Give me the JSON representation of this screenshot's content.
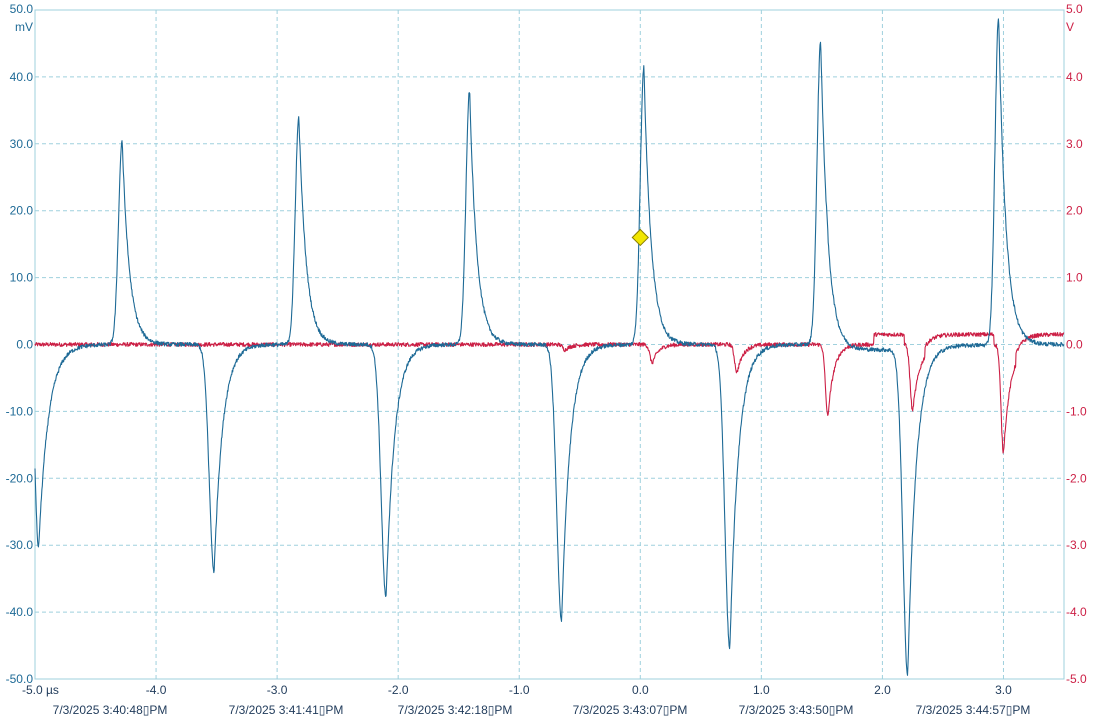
{
  "chart_data": {
    "type": "line",
    "title": "",
    "x_unit": "µs",
    "xlim": [
      -5.0,
      3.5
    ],
    "x_ticks": [
      {
        "value": -5.0,
        "label": "-5.0 µs"
      },
      {
        "value": -4.0,
        "label": "-4.0"
      },
      {
        "value": -3.0,
        "label": "-3.0"
      },
      {
        "value": -2.0,
        "label": "-2.0"
      },
      {
        "value": -1.0,
        "label": "-1.0"
      },
      {
        "value": 0.0,
        "label": "0.0"
      },
      {
        "value": 1.0,
        "label": "1.0"
      },
      {
        "value": 2.0,
        "label": "2.0"
      },
      {
        "value": 3.0,
        "label": "3.0"
      }
    ],
    "left_axis": {
      "unit": "mV",
      "color": "#1e6a96",
      "ylim": [
        -50,
        50
      ],
      "ticks": [
        {
          "value": 50,
          "label": "50.0"
        },
        {
          "value": 40,
          "label": "40.0"
        },
        {
          "value": 30,
          "label": "30.0"
        },
        {
          "value": 20,
          "label": "20.0"
        },
        {
          "value": 10,
          "label": "10.0"
        },
        {
          "value": 0,
          "label": "0.0"
        },
        {
          "value": -10,
          "label": "-10.0"
        },
        {
          "value": -20,
          "label": "-20.0"
        },
        {
          "value": -30,
          "label": "-30.0"
        },
        {
          "value": -40,
          "label": "-40.0"
        },
        {
          "value": -50,
          "label": "-50.0"
        }
      ]
    },
    "right_axis": {
      "unit": "V",
      "color": "#cc1f45",
      "ylim": [
        -5,
        5
      ],
      "ticks": [
        {
          "value": 5,
          "label": "5.0"
        },
        {
          "value": 4,
          "label": "4.0"
        },
        {
          "value": 3,
          "label": "3.0"
        },
        {
          "value": 2,
          "label": "2.0"
        },
        {
          "value": 1,
          "label": "1.0"
        },
        {
          "value": 0,
          "label": "0.0"
        },
        {
          "value": -1,
          "label": "-1.0"
        },
        {
          "value": -2,
          "label": "-2.0"
        },
        {
          "value": -3,
          "label": "-3.0"
        },
        {
          "value": -4,
          "label": "-4.0"
        },
        {
          "value": -5,
          "label": "-5.0"
        }
      ]
    },
    "grid": true,
    "series": [
      {
        "axis": "left",
        "color": "#1e6a96",
        "baseline": 0,
        "pulses": [
          {
            "t": -4.97,
            "v": -30.5,
            "rise": 0.03,
            "decay": 0.08
          },
          {
            "t": -4.28,
            "v": 30.5,
            "rise": 0.03,
            "decay": 0.06
          },
          {
            "t": -3.52,
            "v": -34.0,
            "rise": 0.04,
            "decay": 0.07
          },
          {
            "t": -2.82,
            "v": 34.0,
            "rise": 0.03,
            "decay": 0.06
          },
          {
            "t": -2.1,
            "v": -38.0,
            "rise": 0.04,
            "decay": 0.07
          },
          {
            "t": -1.41,
            "v": 38.0,
            "rise": 0.03,
            "decay": 0.06
          },
          {
            "t": -0.65,
            "v": -41.5,
            "rise": 0.04,
            "decay": 0.07
          },
          {
            "t": 0.03,
            "v": 41.5,
            "rise": 0.03,
            "decay": 0.06
          },
          {
            "t": 0.74,
            "v": -45.5,
            "rise": 0.04,
            "decay": 0.07
          },
          {
            "t": 1.49,
            "v": 45.5,
            "rise": 0.03,
            "decay": 0.06
          },
          {
            "t": 2.21,
            "v": -49.0,
            "rise": 0.04,
            "decay": 0.07
          },
          {
            "t": 2.96,
            "v": 49.0,
            "rise": 0.03,
            "decay": 0.06
          }
        ],
        "baseline_steps": [
          {
            "from": 1.55,
            "to": 2.21,
            "value": -0.8
          },
          {
            "from": 2.3,
            "to": 2.96,
            "value": -0.1
          }
        ]
      },
      {
        "axis": "right",
        "color": "#cc1f45",
        "baseline": 0,
        "pulses": [
          {
            "t": -0.62,
            "v": -0.08,
            "rise": 0.02,
            "decay": 0.05
          },
          {
            "t": 0.1,
            "v": -0.28,
            "rise": 0.02,
            "decay": 0.05
          },
          {
            "t": 0.8,
            "v": -0.42,
            "rise": 0.02,
            "decay": 0.05
          },
          {
            "t": 1.55,
            "v": -1.08,
            "rise": 0.02,
            "decay": 0.05
          },
          {
            "t": 2.25,
            "v": -1.0,
            "rise": 0.02,
            "decay": 0.06
          },
          {
            "t": 3.0,
            "v": -1.62,
            "rise": 0.02,
            "decay": 0.06
          }
        ],
        "baseline_steps": [
          {
            "from": 1.93,
            "to": 2.18,
            "value": 0.15
          },
          {
            "from": 2.35,
            "to": 2.92,
            "value": 0.15
          },
          {
            "from": 3.1,
            "to": 3.5,
            "value": 0.15
          }
        ]
      }
    ],
    "marker": {
      "shape": "diamond",
      "color": "#f2e600",
      "x": 0.0,
      "y": 16.0,
      "axis": "left"
    },
    "timestamps": [
      "7/3/2025 3:40:48\u0000PM",
      "7/3/2025 3:41:41\u0000PM",
      "7/3/2025 3:42:18\u0000PM",
      "7/3/2025 3:43:07\u0000PM",
      "7/3/2025 3:43:50\u0000PM",
      "7/3/2025 3:44:57\u0000PM"
    ]
  }
}
